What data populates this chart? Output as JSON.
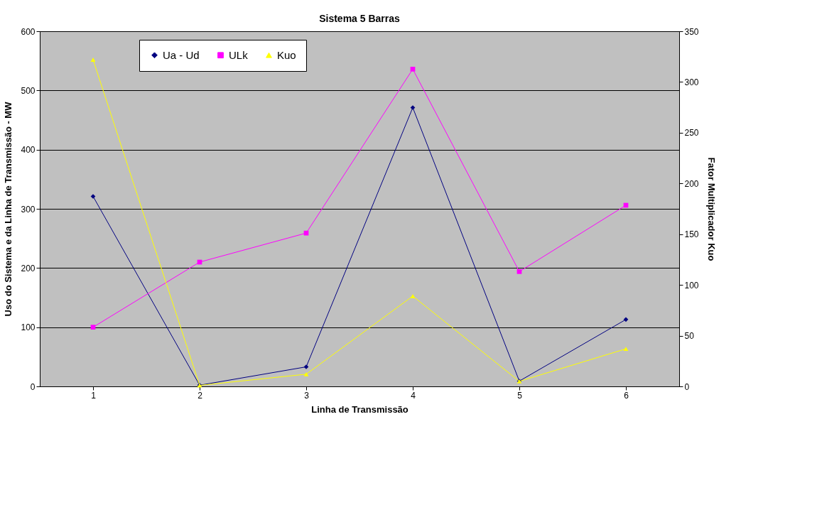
{
  "chart_data": {
    "type": "line",
    "title": "Sistema 5 Barras",
    "xlabel": "Linha de Transmissão",
    "ylabel": "Uso do Sistema e da Linha de Transmissão - MW",
    "y2label": "Fator Multiplicador Kuo",
    "categories": [
      "1",
      "2",
      "3",
      "4",
      "5",
      "6"
    ],
    "series": [
      {
        "name": "Ua - Ud",
        "color": "#000080",
        "marker": "diamond",
        "values": [
          321,
          2,
          33,
          471,
          9,
          113
        ]
      },
      {
        "name": "ULk",
        "color": "#ff00ff",
        "marker": "square",
        "values": [
          100,
          210,
          259,
          536,
          194,
          306
        ]
      },
      {
        "name": "Kuo",
        "color": "#ffff00",
        "marker": "triangle",
        "axis": "y2",
        "values": [
          322,
          1,
          12,
          89,
          5,
          37
        ]
      }
    ],
    "ylim": [
      0,
      600
    ],
    "yticks": [
      0,
      100,
      200,
      300,
      400,
      500,
      600
    ],
    "y2lim": [
      0,
      350
    ],
    "y2ticks": [
      0,
      50,
      100,
      150,
      200,
      250,
      300,
      350
    ],
    "grid": "y",
    "legend": "top left",
    "line_style": "solid"
  }
}
